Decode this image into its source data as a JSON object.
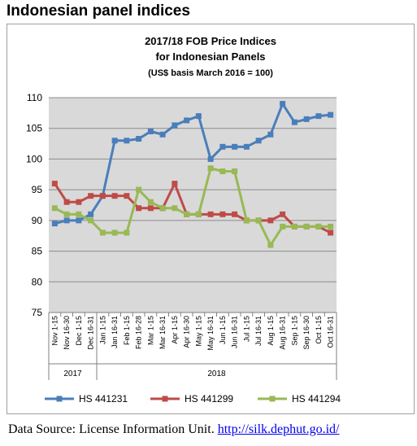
{
  "heading": "Indonesian panel indices",
  "source": {
    "text": "Data Source: License Information Unit.",
    "link": "http://silk.dephut.go.id/"
  },
  "chart_data": {
    "type": "line",
    "title": "2017/18 FOB Price Indices",
    "subtitle_line2": "for Indonesian Panels",
    "subtitle": "(US$ basis March 2016 = 100)",
    "ylim": [
      75,
      110
    ],
    "yticks": [
      75,
      80,
      85,
      90,
      95,
      100,
      105,
      110
    ],
    "grid": true,
    "legend_position": "bottom",
    "groups": [
      {
        "label": "2017",
        "count": 4
      },
      {
        "label": "2018",
        "count": 20
      }
    ],
    "categories": [
      "Nov 1-15",
      "Nov 16-30",
      "Dec 1-15",
      "Dec 16-31",
      "Jan 1-15",
      "Jan 16-31",
      "Feb 1-15",
      "Feb 16-28",
      "Mar 1-15",
      "Mar 16-31",
      "Apr 1-15",
      "Apr 16-30",
      "May 1-15",
      "May 16-31",
      "Jun 1-15",
      "Jun 16-31",
      "Jul 1-15",
      "Jul 16-31",
      "Aug 1-15",
      "Aug 16-31",
      "Sep 1-15",
      "Sep 16-30",
      "Oct 1-15",
      "Oct 16-31"
    ],
    "series": [
      {
        "name": "HS 441231",
        "color": "#4a7ebb",
        "values": [
          89.5,
          90,
          90,
          91,
          94,
          103,
          103,
          103.3,
          104.5,
          104,
          105.5,
          106.3,
          107,
          100,
          102,
          102,
          102,
          103,
          104,
          109,
          106,
          106.5,
          107,
          107.2
        ]
      },
      {
        "name": "HS 441299",
        "color": "#be4b48",
        "values": [
          96,
          93,
          93,
          94,
          94,
          94,
          94,
          92,
          92,
          92,
          96,
          91,
          91,
          91,
          91,
          91,
          90,
          90,
          90,
          91,
          89,
          89,
          89,
          88
        ]
      },
      {
        "name": "HS 441294",
        "color": "#98b954",
        "values": [
          92,
          91,
          91,
          90,
          88,
          88,
          88,
          95,
          93,
          92,
          92,
          91,
          91,
          98.5,
          98,
          98,
          90,
          90,
          86,
          89,
          89,
          89,
          89,
          89
        ]
      }
    ]
  }
}
